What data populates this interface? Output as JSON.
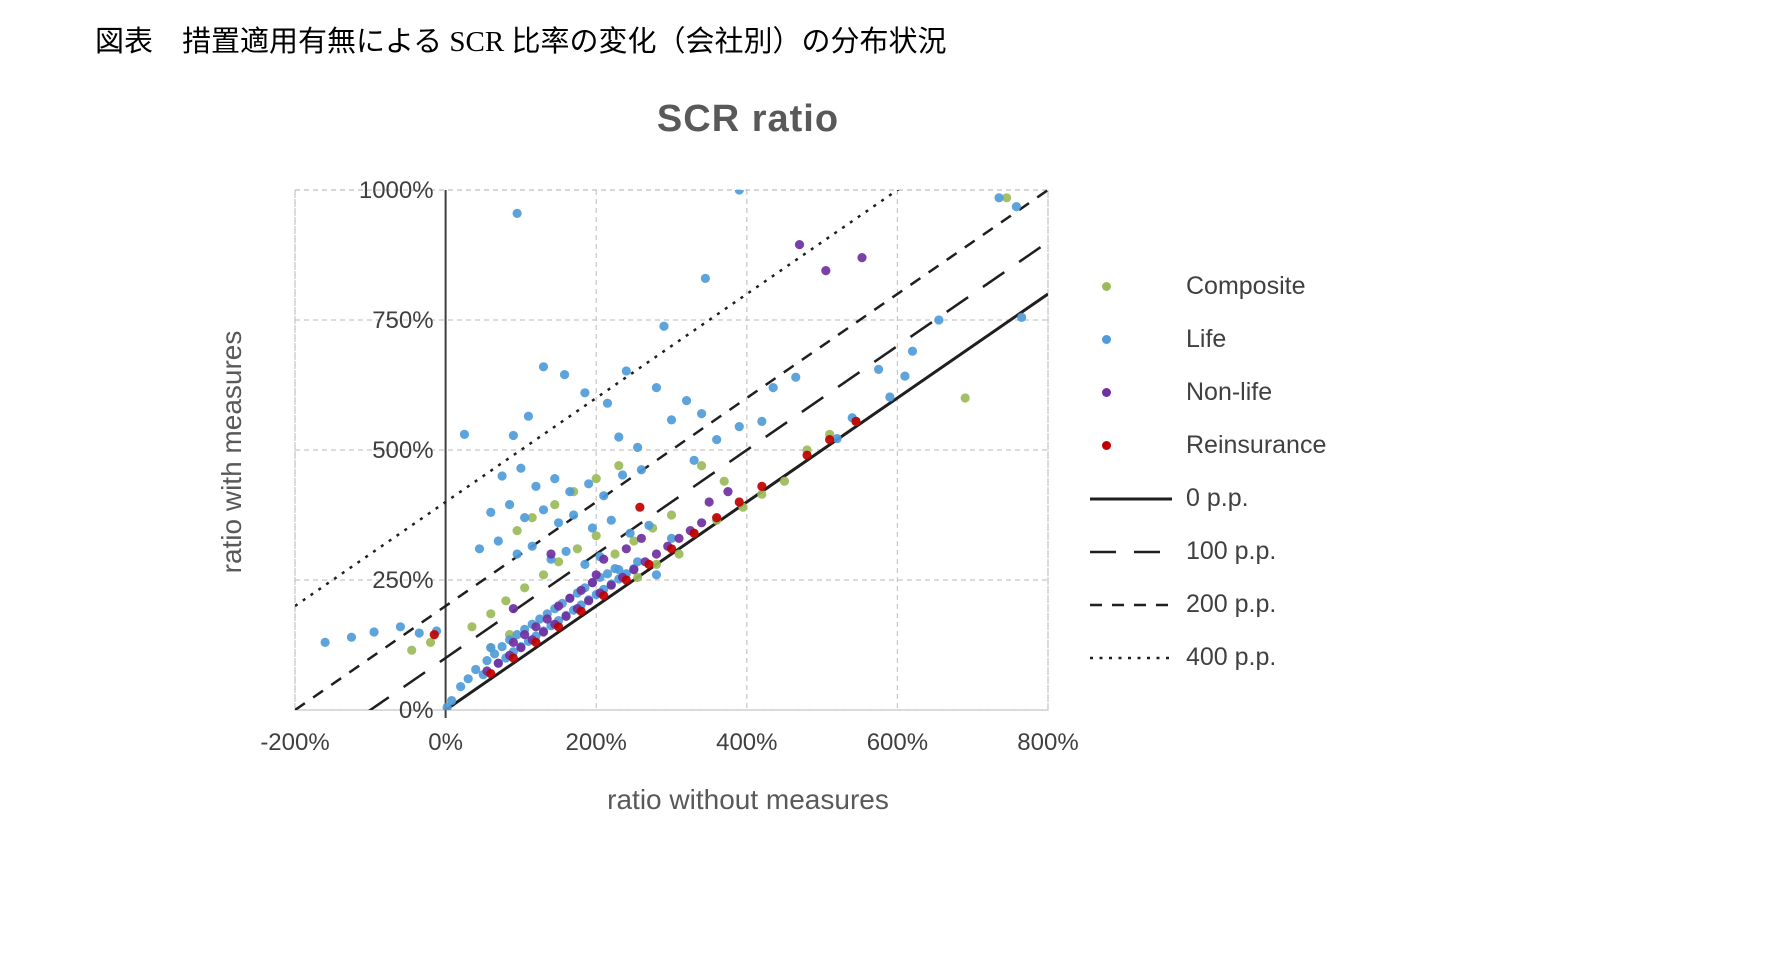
{
  "page": {
    "caption": "図表　措置適用有無による SCR 比率の変化（会社別）の分布状況"
  },
  "chart_data": {
    "type": "scatter",
    "title": "SCR ratio",
    "xlabel": "ratio without measures",
    "ylabel": "ratio with measures",
    "xlim": [
      -200,
      800
    ],
    "ylim": [
      0,
      1000
    ],
    "xticks": [
      -200,
      0,
      200,
      400,
      600,
      800
    ],
    "yticks": [
      0,
      250,
      500,
      750,
      1000
    ],
    "xtick_labels": [
      "-200%",
      "0%",
      "200%",
      "400%",
      "600%",
      "800%"
    ],
    "ytick_labels": [
      "0%",
      "250%",
      "500%",
      "750%",
      "1000%"
    ],
    "grid": true,
    "legend_position": "right",
    "series": [
      {
        "name": "Composite",
        "color": "#9bbb59",
        "points": [
          [
            -45,
            115
          ],
          [
            -20,
            130
          ],
          [
            35,
            160
          ],
          [
            60,
            120
          ],
          [
            60,
            185
          ],
          [
            80,
            210
          ],
          [
            85,
            145
          ],
          [
            95,
            345
          ],
          [
            105,
            235
          ],
          [
            115,
            370
          ],
          [
            130,
            260
          ],
          [
            145,
            395
          ],
          [
            150,
            285
          ],
          [
            170,
            420
          ],
          [
            175,
            310
          ],
          [
            200,
            335
          ],
          [
            200,
            445
          ],
          [
            225,
            300
          ],
          [
            230,
            470
          ],
          [
            250,
            325
          ],
          [
            255,
            255
          ],
          [
            275,
            350
          ],
          [
            280,
            280
          ],
          [
            300,
            375
          ],
          [
            310,
            300
          ],
          [
            330,
            340
          ],
          [
            340,
            470
          ],
          [
            360,
            365
          ],
          [
            370,
            440
          ],
          [
            395,
            390
          ],
          [
            420,
            415
          ],
          [
            450,
            440
          ],
          [
            480,
            500
          ],
          [
            510,
            530
          ],
          [
            545,
            555
          ],
          [
            690,
            600
          ],
          [
            745,
            985
          ]
        ]
      },
      {
        "name": "Life",
        "color": "#4f9bd9",
        "points": [
          [
            -160,
            130
          ],
          [
            -125,
            140
          ],
          [
            -95,
            150
          ],
          [
            -60,
            160
          ],
          [
            -35,
            148
          ],
          [
            -12,
            152
          ],
          [
            2,
            5
          ],
          [
            8,
            18
          ],
          [
            20,
            45
          ],
          [
            30,
            60
          ],
          [
            40,
            78
          ],
          [
            50,
            68
          ],
          [
            55,
            95
          ],
          [
            60,
            120
          ],
          [
            65,
            108
          ],
          [
            70,
            90
          ],
          [
            75,
            122
          ],
          [
            80,
            100
          ],
          [
            85,
            135
          ],
          [
            90,
            112
          ],
          [
            95,
            145
          ],
          [
            100,
            122
          ],
          [
            105,
            155
          ],
          [
            110,
            132
          ],
          [
            115,
            165
          ],
          [
            120,
            142
          ],
          [
            125,
            175
          ],
          [
            130,
            152
          ],
          [
            135,
            185
          ],
          [
            140,
            162
          ],
          [
            145,
            195
          ],
          [
            150,
            172
          ],
          [
            155,
            205
          ],
          [
            160,
            182
          ],
          [
            165,
            215
          ],
          [
            170,
            192
          ],
          [
            175,
            225
          ],
          [
            180,
            202
          ],
          [
            185,
            235
          ],
          [
            190,
            212
          ],
          [
            195,
            245
          ],
          [
            200,
            222
          ],
          [
            205,
            255
          ],
          [
            210,
            232
          ],
          [
            215,
            262
          ],
          [
            220,
            242
          ],
          [
            225,
            272
          ],
          [
            230,
            252
          ],
          [
            240,
            262
          ],
          [
            250,
            272
          ],
          [
            45,
            310
          ],
          [
            70,
            325
          ],
          [
            95,
            300
          ],
          [
            115,
            315
          ],
          [
            140,
            290
          ],
          [
            160,
            305
          ],
          [
            185,
            280
          ],
          [
            205,
            295
          ],
          [
            230,
            270
          ],
          [
            255,
            285
          ],
          [
            280,
            260
          ],
          [
            300,
            330
          ],
          [
            60,
            380
          ],
          [
            85,
            395
          ],
          [
            105,
            370
          ],
          [
            130,
            385
          ],
          [
            150,
            360
          ],
          [
            170,
            375
          ],
          [
            195,
            350
          ],
          [
            220,
            365
          ],
          [
            245,
            340
          ],
          [
            270,
            355
          ],
          [
            75,
            450
          ],
          [
            100,
            465
          ],
          [
            120,
            430
          ],
          [
            145,
            445
          ],
          [
            165,
            420
          ],
          [
            190,
            435
          ],
          [
            210,
            412
          ],
          [
            235,
            452
          ],
          [
            260,
            462
          ],
          [
            25,
            530
          ],
          [
            90,
            528
          ],
          [
            110,
            565
          ],
          [
            130,
            660
          ],
          [
            158,
            645
          ],
          [
            185,
            610
          ],
          [
            215,
            590
          ],
          [
            230,
            525
          ],
          [
            255,
            505
          ],
          [
            280,
            620
          ],
          [
            300,
            558
          ],
          [
            320,
            595
          ],
          [
            340,
            570
          ],
          [
            360,
            520
          ],
          [
            330,
            480
          ],
          [
            95,
            955
          ],
          [
            390,
            1000
          ],
          [
            345,
            830
          ],
          [
            290,
            738
          ],
          [
            240,
            652
          ],
          [
            390,
            545
          ],
          [
            420,
            555
          ],
          [
            435,
            620
          ],
          [
            465,
            640
          ],
          [
            520,
            522
          ],
          [
            540,
            562
          ],
          [
            575,
            655
          ],
          [
            590,
            602
          ],
          [
            610,
            642
          ],
          [
            620,
            690
          ],
          [
            655,
            750
          ],
          [
            735,
            985
          ],
          [
            758,
            968
          ],
          [
            765,
            755
          ]
        ]
      },
      {
        "name": "Non-life",
        "color": "#7030a0",
        "points": [
          [
            55,
            75
          ],
          [
            70,
            90
          ],
          [
            85,
            105
          ],
          [
            90,
            130
          ],
          [
            90,
            195
          ],
          [
            100,
            120
          ],
          [
            105,
            145
          ],
          [
            115,
            135
          ],
          [
            120,
            160
          ],
          [
            130,
            150
          ],
          [
            135,
            175
          ],
          [
            140,
            300
          ],
          [
            145,
            165
          ],
          [
            150,
            200
          ],
          [
            160,
            180
          ],
          [
            165,
            215
          ],
          [
            175,
            195
          ],
          [
            180,
            230
          ],
          [
            190,
            210
          ],
          [
            195,
            245
          ],
          [
            200,
            260
          ],
          [
            205,
            225
          ],
          [
            210,
            290
          ],
          [
            220,
            240
          ],
          [
            235,
            255
          ],
          [
            240,
            310
          ],
          [
            250,
            270
          ],
          [
            260,
            330
          ],
          [
            265,
            285
          ],
          [
            280,
            300
          ],
          [
            295,
            315
          ],
          [
            310,
            330
          ],
          [
            325,
            345
          ],
          [
            340,
            360
          ],
          [
            350,
            400
          ],
          [
            375,
            420
          ],
          [
            470,
            895
          ],
          [
            505,
            845
          ],
          [
            553,
            870
          ]
        ]
      },
      {
        "name": "Reinsurance",
        "color": "#c00000",
        "points": [
          [
            -15,
            145
          ],
          [
            60,
            70
          ],
          [
            90,
            100
          ],
          [
            120,
            130
          ],
          [
            150,
            160
          ],
          [
            180,
            190
          ],
          [
            210,
            220
          ],
          [
            240,
            250
          ],
          [
            258,
            390
          ],
          [
            270,
            280
          ],
          [
            300,
            310
          ],
          [
            330,
            340
          ],
          [
            360,
            370
          ],
          [
            390,
            400
          ],
          [
            420,
            430
          ],
          [
            480,
            490
          ],
          [
            510,
            520
          ],
          [
            545,
            555
          ]
        ]
      }
    ],
    "reference_lines": [
      {
        "name": "0 p.p.",
        "offset": 0,
        "style": "solid"
      },
      {
        "name": "100 p.p.",
        "offset": 100,
        "style": "long-dash"
      },
      {
        "name": "200 p.p.",
        "offset": 200,
        "style": "short-dash"
      },
      {
        "name": "400 p.p.",
        "offset": 400,
        "style": "dotted"
      }
    ]
  }
}
